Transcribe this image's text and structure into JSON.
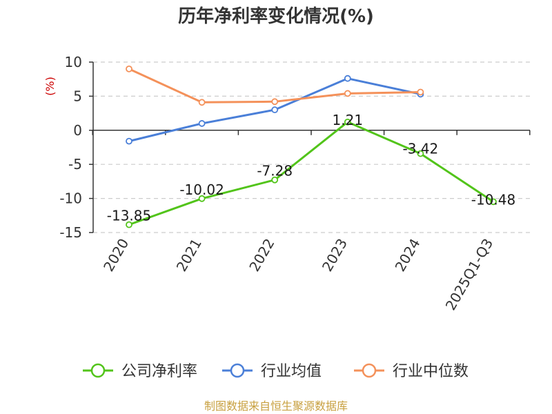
{
  "chart_data": {
    "type": "line",
    "title": "历年净利率变化情况(%)",
    "ylabel": "(%)",
    "ylim": [
      -15,
      10
    ],
    "yticks": [
      10,
      5,
      0,
      -5,
      -10,
      -15
    ],
    "categories": [
      "2020",
      "2021",
      "2022",
      "2023",
      "2024",
      "2025Q1-Q3"
    ],
    "grid": true,
    "legend_position": "bottom",
    "series": [
      {
        "name": "公司净利率",
        "color": "#52c41a",
        "values": [
          -13.85,
          -10.02,
          -7.28,
          1.21,
          -3.42,
          -10.48
        ],
        "labels": [
          "-13.85",
          "-10.02",
          "-7.28",
          "1.21",
          "-3.42",
          "-10.48"
        ]
      },
      {
        "name": "行业均值",
        "color": "#4a7fd8",
        "values": [
          -1.6,
          1.0,
          3.0,
          7.6,
          5.3,
          null
        ]
      },
      {
        "name": "行业中位数",
        "color": "#f4915a",
        "values": [
          9.0,
          4.1,
          4.2,
          5.4,
          5.6,
          null
        ]
      }
    ]
  },
  "source_text": "制图数据来自恒生聚源数据库",
  "colors": {
    "source": "#c8a040",
    "unit": "#cc0000",
    "axis": "#333333",
    "grid": "#cccccc"
  }
}
